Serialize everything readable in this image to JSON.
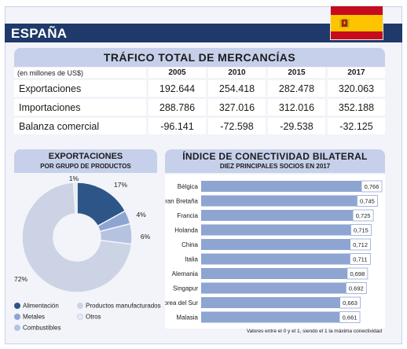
{
  "header": {
    "title": "ESPAÑA",
    "flag_name": "spain-flag"
  },
  "trade": {
    "title": "TRÁFICO TOTAL DE MERCANCÍAS",
    "unit": "(en millones de US$)",
    "years": [
      "2005",
      "2010",
      "2015",
      "2017"
    ],
    "rows": [
      {
        "label": "Exportaciones",
        "values": [
          "192.644",
          "254.418",
          "282.478",
          "320.063"
        ]
      },
      {
        "label": "Importaciones",
        "values": [
          "288.786",
          "327.016",
          "312.016",
          "352.188"
        ]
      },
      {
        "label": "Balanza comercial",
        "values": [
          "-96.141",
          "-72.598",
          "-29.538",
          "-32.125"
        ]
      }
    ]
  },
  "exports": {
    "title": "EXPORTACIONES",
    "subtitle": "POR GRUPO DE PRODUCTOS"
  },
  "connectivity": {
    "title": "ÍNDICE DE CONECTIVIDAD BILATERAL",
    "subtitle": "DIEZ PRINCIPALES SOCIOS EN 2017",
    "note": "Valores entre el 0 y el 1, siendo el 1 la máxima conectividad"
  },
  "chart_data": [
    {
      "type": "pie",
      "title": "EXPORTACIONES",
      "subtitle": "POR GRUPO DE PRODUCTOS",
      "slices": [
        {
          "name": "Alimentación",
          "value": 17,
          "label": "17%",
          "color": "#2d5587"
        },
        {
          "name": "Metales",
          "value": 4,
          "label": "4%",
          "color": "#8ea5d2"
        },
        {
          "name": "Combustibles",
          "value": 6,
          "label": "6%",
          "color": "#b5c3e1"
        },
        {
          "name": "Productos manufacturados",
          "value": 72,
          "label": "72%",
          "color": "#cbd3e4"
        },
        {
          "name": "Otros",
          "value": 1,
          "label": "1%",
          "color": "#e6eaf2"
        }
      ],
      "legend_placement": "bottom"
    },
    {
      "type": "bar",
      "orientation": "horizontal",
      "title": "ÍNDICE DE CONECTIVIDAD BILATERAL",
      "subtitle": "DIEZ PRINCIPALES SOCIOS EN 2017",
      "categories": [
        "Bélgica",
        "Gran Bretaña",
        "Francia",
        "Holanda",
        "China",
        "Italia",
        "Alemania",
        "Singapur",
        "Corea del Sur",
        "Malasia"
      ],
      "values": [
        0.766,
        0.745,
        0.725,
        0.715,
        0.712,
        0.711,
        0.698,
        0.692,
        0.663,
        0.661
      ],
      "labels": [
        "0,766",
        "0,745",
        "0,725",
        "0,715",
        "0,712",
        "0,711",
        "0,698",
        "0,692",
        "0,663",
        "0,661"
      ],
      "xlim": [
        0,
        0.766
      ],
      "bar_color": "#8ea5d2",
      "grid": false
    }
  ]
}
